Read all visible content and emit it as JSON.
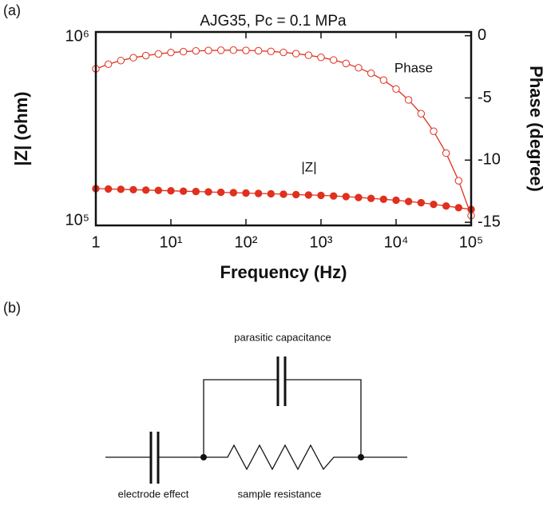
{
  "panel_labels": [
    "(a)",
    "(b)"
  ],
  "chart_data": {
    "type": "line",
    "title": "AJG35, Pc = 0.1 MPa",
    "x_label": "Frequency (Hz)",
    "y_label": "|Z| (ohm)",
    "y2_label": "Phase (degree)",
    "x": [
      1,
      1.468,
      2.154,
      3.162,
      4.642,
      6.813,
      10,
      14.68,
      21.54,
      31.62,
      46.42,
      68.13,
      100,
      146.8,
      215.4,
      316.2,
      464.2,
      681.3,
      1000,
      1468,
      2154,
      3162,
      4642,
      6813,
      10000,
      14680,
      21540,
      31620,
      46420,
      68130,
      100000
    ],
    "series": [
      {
        "name": "|Z|",
        "color": "#e0301e",
        "marker": "filled",
        "values": [
          155000,
          154300,
          153700,
          153000,
          152300,
          151700,
          151000,
          150300,
          149700,
          149000,
          148300,
          147700,
          147000,
          146300,
          145700,
          145000,
          144300,
          143700,
          143000,
          142000,
          141000,
          139500,
          138000,
          136500,
          135000,
          133000,
          131000,
          128500,
          126000,
          123500,
          121000
        ]
      },
      {
        "name": "Phase",
        "color": "#e0301e",
        "marker": "open",
        "axis": "y2",
        "values": [
          -2.66,
          -2.29,
          -2.0,
          -1.77,
          -1.6,
          -1.46,
          -1.35,
          -1.28,
          -1.22,
          -1.19,
          -1.17,
          -1.16,
          -1.18,
          -1.21,
          -1.26,
          -1.34,
          -1.44,
          -1.57,
          -1.74,
          -1.95,
          -2.23,
          -2.58,
          -3.02,
          -3.57,
          -4.28,
          -5.16,
          -6.27,
          -7.68,
          -9.44,
          -11.66,
          -14.46
        ]
      }
    ],
    "xscale": "log",
    "yscale": "log",
    "xlim": [
      1,
      100000
    ],
    "xticks": [
      1,
      {
        "value": 10,
        "label": "10¹"
      },
      {
        "value": 100,
        "label": "10²"
      },
      {
        "value": 1000,
        "label": "10³"
      },
      {
        "value": 10000,
        "label": "10⁴"
      },
      {
        "value": 100000,
        "label": "10⁵"
      }
    ],
    "ylim": [
      100000,
      1000000
    ],
    "yticks": [
      {
        "value": 100000,
        "label": "10⁵"
      },
      {
        "value": 1000000,
        "label": "10⁶"
      }
    ],
    "y2lim": [
      -15.25,
      0.3
    ],
    "y2ticks": [
      0,
      -5,
      -10,
      -15
    ]
  },
  "circuit": {
    "parasitic_label": "parasitic capacitance",
    "electrode_label": "electrode effect",
    "resistance_label": "sample resistance"
  }
}
